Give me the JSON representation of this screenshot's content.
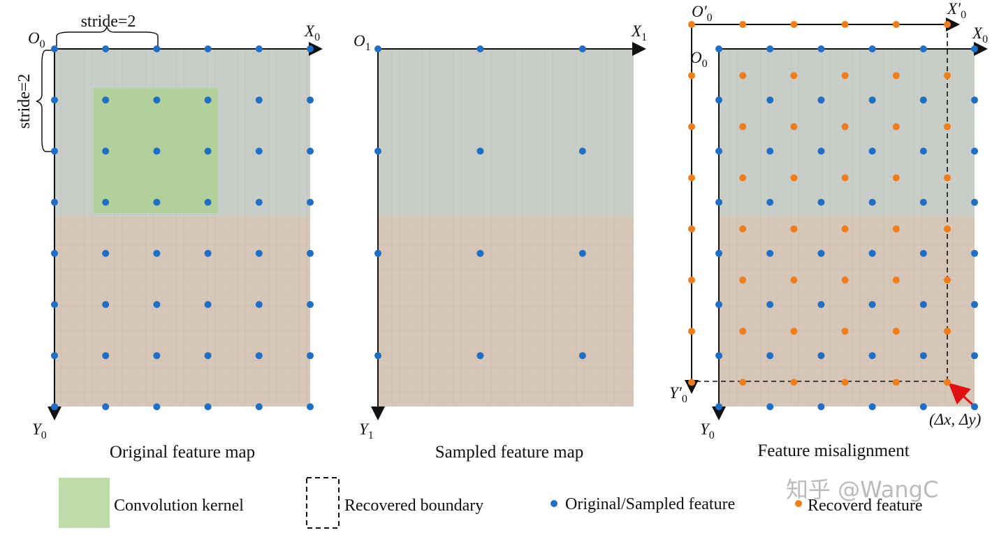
{
  "top_stride": "stride=2",
  "left_stride": "stride=2",
  "panels": [
    {
      "caption": "Original feature map",
      "origin": {
        "text": "O",
        "sub": "0"
      },
      "x_axis": {
        "text": "X",
        "sub": "0"
      },
      "y_axis": {
        "text": "Y",
        "sub": "0"
      }
    },
    {
      "caption": "Sampled feature map",
      "origin": {
        "text": "O",
        "sub": "1"
      },
      "x_axis": {
        "text": "X",
        "sub": "1"
      },
      "y_axis": {
        "text": "Y",
        "sub": "1"
      }
    },
    {
      "caption": "Feature misalignment",
      "origin": {
        "text": "O",
        "sub": "0"
      },
      "x_axis": {
        "text": "X",
        "sub": "0"
      },
      "y_axis": {
        "text": "Y",
        "sub": "0"
      },
      "shifted_origin": {
        "text": "O′",
        "sub": "0"
      },
      "shifted_x_axis": {
        "text": "X′",
        "sub": "0"
      },
      "shifted_y_axis": {
        "text": "Y′",
        "sub": "0"
      },
      "offset": "(Δx, Δy)"
    }
  ],
  "legend": [
    "Convolution kernel",
    "Recovered boundary",
    "Original/Sampled feature",
    "Recoverd feature"
  ],
  "watermark": "知乎 @WangC"
}
